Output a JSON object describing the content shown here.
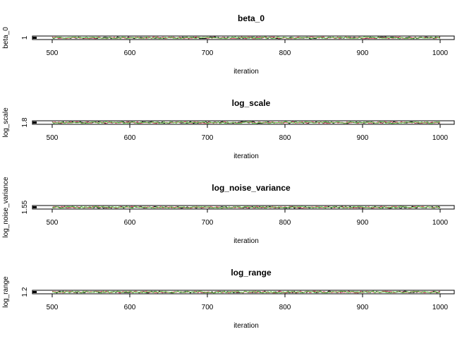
{
  "chart_data": [
    {
      "type": "line",
      "title": "beta_0",
      "xlabel": "iteration",
      "ylabel": "beta_0",
      "x_ticks": [
        500,
        600,
        700,
        800,
        900,
        1000
      ],
      "y_ticks": [
        "1"
      ],
      "xlim": [
        500,
        1000
      ],
      "y_center": 1,
      "series": [
        {
          "color": "#000000",
          "level": 1.0
        },
        {
          "color": "#DF536B",
          "level": 1.0
        },
        {
          "color": "#61D04F",
          "level": 1.0
        }
      ]
    },
    {
      "type": "line",
      "title": "log_scale",
      "xlabel": "iteration",
      "ylabel": "log_scale",
      "x_ticks": [
        500,
        600,
        700,
        800,
        900,
        1000
      ],
      "y_ticks": [
        "1.8"
      ],
      "xlim": [
        500,
        1000
      ],
      "y_center": 1.8,
      "series": [
        {
          "color": "#000000",
          "level": 1.8
        },
        {
          "color": "#DF536B",
          "level": 1.8
        },
        {
          "color": "#61D04F",
          "level": 1.8
        }
      ]
    },
    {
      "type": "line",
      "title": "log_noise_variance",
      "xlabel": "iteration",
      "ylabel": "log_noise_variance",
      "x_ticks": [
        500,
        600,
        700,
        800,
        900,
        1000
      ],
      "y_ticks": [
        "1.55"
      ],
      "xlim": [
        500,
        1000
      ],
      "y_center": 1.55,
      "series": [
        {
          "color": "#000000",
          "level": 1.55
        },
        {
          "color": "#DF536B",
          "level": 1.55
        },
        {
          "color": "#61D04F",
          "level": 1.55
        }
      ]
    },
    {
      "type": "line",
      "title": "log_range",
      "xlabel": "iteration",
      "ylabel": "log_range",
      "x_ticks": [
        500,
        600,
        700,
        800,
        900,
        1000
      ],
      "y_ticks": [
        "1.2"
      ],
      "xlim": [
        500,
        1000
      ],
      "y_center": 1.2,
      "series": [
        {
          "color": "#000000",
          "level": 1.2
        },
        {
          "color": "#DF536B",
          "level": 1.2
        },
        {
          "color": "#61D04F",
          "level": 1.2
        }
      ]
    }
  ]
}
